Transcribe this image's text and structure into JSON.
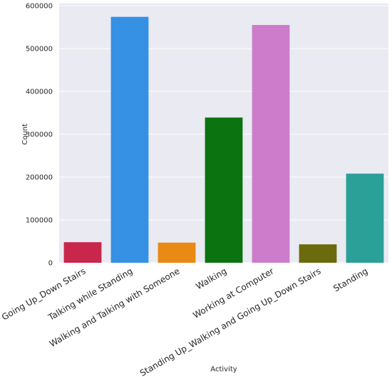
{
  "chart_data": {
    "type": "bar",
    "title": "",
    "xlabel": "Activity",
    "ylabel": "Count",
    "ylim": [
      0,
      605000
    ],
    "yticks": [
      0,
      100000,
      200000,
      300000,
      400000,
      500000,
      600000
    ],
    "ytick_labels": [
      "0",
      "100000",
      "200000",
      "300000",
      "400000",
      "500000",
      "600000"
    ],
    "grid": true,
    "background": "#eaeaf2",
    "categories": [
      "Going Up_Down Stairs",
      "Talking while Standing",
      "Walking and Talking with Someone",
      "Walking",
      "Working at Computer",
      "Standing Up_Walking and Going Up_Down Stairs",
      "Standing"
    ],
    "values": [
      48000,
      574000,
      47000,
      339000,
      555000,
      43000,
      208000
    ],
    "colors": [
      "#c8264a",
      "#3690e4",
      "#e88a14",
      "#0b7310",
      "#cc7ccb",
      "#6b6b0d",
      "#2aa098"
    ]
  }
}
